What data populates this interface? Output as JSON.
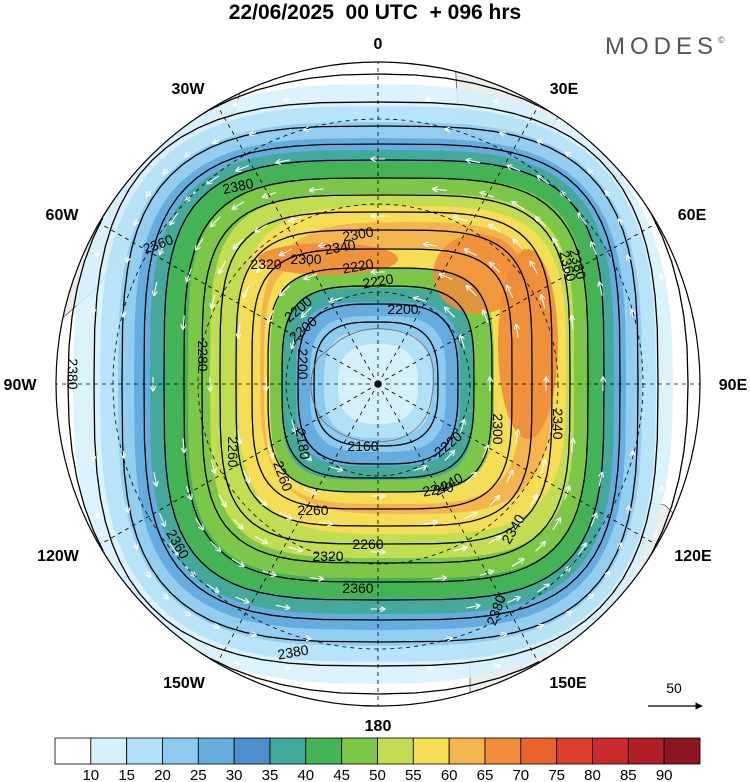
{
  "title": "22/06/2025  00 UTC  + 096 hrs",
  "logo": "MODES",
  "logo_mark": "©",
  "longitude_labels": {
    "n": "0",
    "nne": "30E",
    "ene": "60E",
    "e": "90E",
    "ese": "120E",
    "sse": "150E",
    "s": "180",
    "ssw": "150W",
    "wsw": "120W",
    "w": "90W",
    "wnw": "60W",
    "nnw": "30W"
  },
  "contour_labels": [
    "2380",
    "2380",
    "2380",
    "2380",
    "2380",
    "2360",
    "2360",
    "2360",
    "2360",
    "2340",
    "2340",
    "2340",
    "2320",
    "2320",
    "2300",
    "2300",
    "2280",
    "2260",
    "2260",
    "2260",
    "2240",
    "2220",
    "2220",
    "2200",
    "2200",
    "2180",
    "2160",
    "2200",
    "2200",
    "2220",
    "2240",
    "2260",
    "2300"
  ],
  "vector_reference": {
    "value": "50"
  },
  "colorbar": {
    "labels": [
      "10",
      "15",
      "20",
      "25",
      "30",
      "35",
      "40",
      "45",
      "50",
      "55",
      "60",
      "65",
      "70",
      "75",
      "80",
      "85",
      "90"
    ],
    "colors": [
      "#ffffff",
      "#d6f0fc",
      "#b2e0f7",
      "#8ccaf0",
      "#67acdf",
      "#4d8fcb",
      "#44a99a",
      "#44b356",
      "#7cc648",
      "#c3dd52",
      "#f5de55",
      "#f5b54e",
      "#f08c3a",
      "#e8642f",
      "#de3e2c",
      "#c92a2b",
      "#b01e26",
      "#8c1620"
    ]
  },
  "colors": {
    "land": "#ececec",
    "coast": "#5a5a5a",
    "contour": "#000000"
  }
}
